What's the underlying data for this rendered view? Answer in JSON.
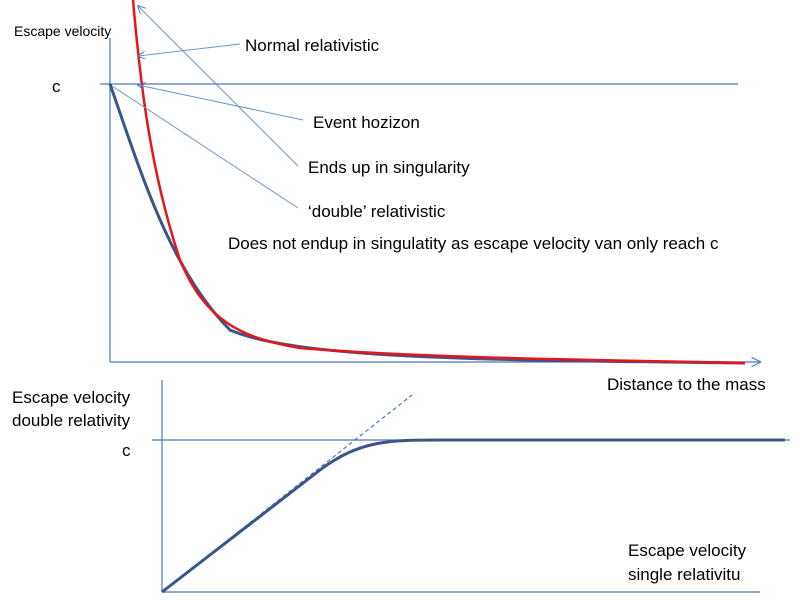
{
  "top_chart": {
    "y_label": "Escape velocity",
    "c_label": "c",
    "x_label": "Distance to the mass",
    "annotations": [
      "Normal relativistic",
      "Event hozizon",
      "Ends up in singularity",
      "‘double’ relativistic"
    ],
    "note": "Does not endup in singulatity as escape velocity van only reach c"
  },
  "bottom_chart": {
    "y_label": [
      "Escape velocity",
      "double relativity"
    ],
    "c_label": "c",
    "x_label": [
      "Escape velocity",
      "single relativitu"
    ]
  }
}
